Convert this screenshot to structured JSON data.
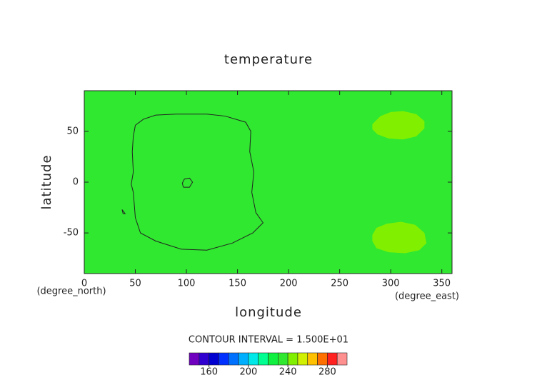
{
  "chart_data": {
    "type": "contour",
    "title": "temperature",
    "x_label": "longitude",
    "y_label": "latitude",
    "x_unit": "(degree_east)",
    "y_unit": "(degree_north)",
    "xlim": [
      0,
      360
    ],
    "ylim": [
      -90,
      90
    ],
    "xticks": [
      0,
      50,
      100,
      150,
      200,
      250,
      300,
      350
    ],
    "yticks": [
      -50,
      0,
      50
    ],
    "field_level": 230,
    "regions": [
      {
        "level": 240,
        "x": [
          282,
          290,
          300,
          312,
          325,
          333,
          333,
          325,
          312,
          298,
          287,
          282
        ],
        "y": [
          57,
          65,
          69,
          70,
          67,
          60,
          53,
          45,
          42,
          43,
          47,
          52
        ]
      },
      {
        "level": 240,
        "x": [
          282,
          286,
          296,
          310,
          324,
          333,
          335,
          328,
          314,
          298,
          286,
          282
        ],
        "y": [
          -52,
          -45,
          -41,
          -39,
          -42,
          -50,
          -60,
          -67,
          -70,
          -69,
          -65,
          -58
        ]
      }
    ],
    "contours": [
      {
        "x": [
          50,
          58,
          70,
          90,
          120,
          138,
          158,
          163,
          162,
          166,
          164,
          168,
          175,
          165,
          145,
          120,
          95,
          70,
          55,
          50,
          48,
          46,
          48,
          47,
          48,
          50
        ],
        "y": [
          56,
          62,
          66,
          67,
          67,
          65,
          59,
          50,
          30,
          10,
          -10,
          -30,
          -40,
          -50,
          -60,
          -67,
          -66,
          -58,
          -50,
          -35,
          -10,
          -2,
          10,
          30,
          45,
          56
        ]
      },
      {
        "x": [
          97,
          103,
          106,
          103,
          98,
          96,
          97
        ],
        "y": [
          -5,
          -5,
          0,
          4,
          3,
          -1,
          -5
        ]
      },
      {
        "x": [
          37,
          40,
          38,
          37
        ],
        "y": [
          -27,
          -31,
          -31,
          -27
        ]
      }
    ],
    "contour_interval_text": "CONTOUR INTERVAL = 1.500E+01",
    "colorbar": {
      "levels": [
        140,
        150,
        160,
        170,
        180,
        190,
        200,
        210,
        220,
        230,
        240,
        250,
        260,
        270,
        280,
        290,
        300
      ],
      "colors": [
        "#7000c0",
        "#3000d0",
        "#0000d0",
        "#0030ff",
        "#0070ff",
        "#00b0ff",
        "#00e8e8",
        "#00ff90",
        "#10f040",
        "#30e830",
        "#80f000",
        "#d0f000",
        "#ffc000",
        "#ff7000",
        "#ff2020",
        "#ff9090"
      ],
      "ticks": [
        160,
        200,
        240,
        280
      ]
    }
  }
}
